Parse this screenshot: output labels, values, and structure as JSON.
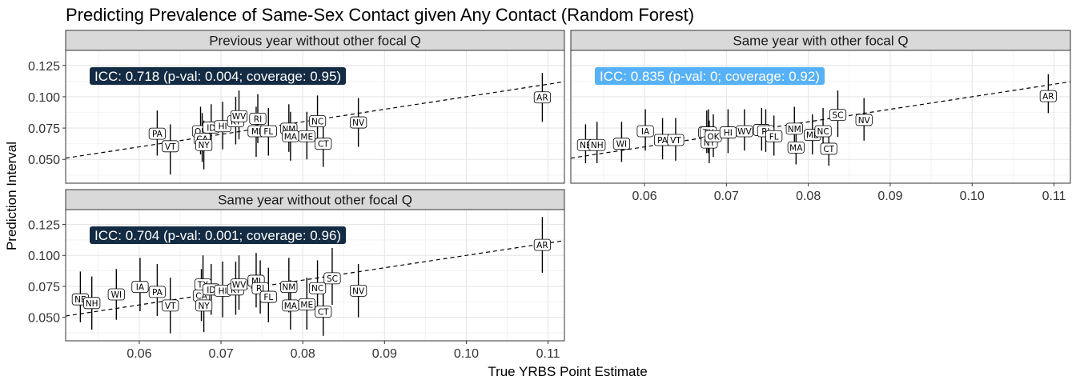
{
  "chart_data": {
    "type": "scatter",
    "title": "Predicting Prevalence of Same-Sex Contact given Any Contact (Random Forest)",
    "xlabel": "True YRBS Point Estimate",
    "ylabel": "Prediction Interval",
    "xlim": [
      0.051,
      0.112
    ],
    "ylim": [
      0.031,
      0.137
    ],
    "xticks": [
      0.06,
      0.07,
      0.08,
      0.09,
      0.1,
      0.11
    ],
    "xtick_labels": [
      "0.06",
      "0.07",
      "0.08",
      "0.09",
      "0.10",
      "0.11"
    ],
    "yticks": [
      0.05,
      0.075,
      0.1,
      0.125
    ],
    "ytick_labels": [
      "0.050",
      "0.075",
      "0.100",
      "0.125"
    ],
    "grid": true,
    "reference_line": {
      "slope": 1,
      "intercept": 0,
      "style": "dashed"
    },
    "panels": [
      {
        "name": "Previous year without other focal Q",
        "icc_label": "ICC: 0.718 (p-val: 0.004; coverage: 0.95)",
        "icc_color": "#132B43",
        "points": [
          {
            "state": "PA",
            "x": 0.0622,
            "y": 0.0705,
            "lo": 0.053,
            "hi": 0.089
          },
          {
            "state": "VT",
            "x": 0.0638,
            "y": 0.0605,
            "lo": 0.038,
            "hi": 0.078
          },
          {
            "state": "OK",
            "x": 0.0675,
            "y": 0.0725,
            "lo": 0.054,
            "hi": 0.092
          },
          {
            "state": "CA",
            "x": 0.0677,
            "y": 0.0665,
            "lo": 0.048,
            "hi": 0.087
          },
          {
            "state": "NY",
            "x": 0.0679,
            "y": 0.0615,
            "lo": 0.042,
            "hi": 0.081
          },
          {
            "state": "ID",
            "x": 0.0688,
            "y": 0.0755,
            "lo": 0.057,
            "hi": 0.094
          },
          {
            "state": "HI",
            "x": 0.0702,
            "y": 0.0765,
            "lo": 0.058,
            "hi": 0.096
          },
          {
            "state": "KY",
            "x": 0.0718,
            "y": 0.0805,
            "lo": 0.062,
            "hi": 0.1
          },
          {
            "state": "WV",
            "x": 0.0722,
            "y": 0.0845,
            "lo": 0.066,
            "hi": 0.105
          },
          {
            "state": "RI",
            "x": 0.0745,
            "y": 0.0825,
            "lo": 0.063,
            "hi": 0.102
          },
          {
            "state": "MI",
            "x": 0.0743,
            "y": 0.0725,
            "lo": 0.052,
            "hi": 0.092
          },
          {
            "state": "FL",
            "x": 0.0758,
            "y": 0.0725,
            "lo": 0.053,
            "hi": 0.091
          },
          {
            "state": "NM",
            "x": 0.0783,
            "y": 0.0745,
            "lo": 0.056,
            "hi": 0.094
          },
          {
            "state": "MA",
            "x": 0.0785,
            "y": 0.0685,
            "lo": 0.049,
            "hi": 0.088
          },
          {
            "state": "ME",
            "x": 0.0805,
            "y": 0.0685,
            "lo": 0.05,
            "hi": 0.088
          },
          {
            "state": "NC",
            "x": 0.0818,
            "y": 0.0805,
            "lo": 0.062,
            "hi": 0.101
          },
          {
            "state": "CT",
            "x": 0.0825,
            "y": 0.0625,
            "lo": 0.044,
            "hi": 0.081
          },
          {
            "state": "NV",
            "x": 0.0868,
            "y": 0.0795,
            "lo": 0.06,
            "hi": 0.099
          },
          {
            "state": "AR",
            "x": 0.1093,
            "y": 0.0995,
            "lo": 0.08,
            "hi": 0.119
          }
        ]
      },
      {
        "name": "Same year with other focal Q",
        "icc_label": "ICC: 0.835 (p-val: 0; coverage: 0.92)",
        "icc_color": "#56B1F7",
        "points": [
          {
            "state": "NE",
            "x": 0.0528,
            "y": 0.0615,
            "lo": 0.047,
            "hi": 0.078
          },
          {
            "state": "NH",
            "x": 0.0542,
            "y": 0.0615,
            "lo": 0.047,
            "hi": 0.08
          },
          {
            "state": "WI",
            "x": 0.0572,
            "y": 0.0625,
            "lo": 0.048,
            "hi": 0.08
          },
          {
            "state": "IA",
            "x": 0.0601,
            "y": 0.0725,
            "lo": 0.057,
            "hi": 0.09
          },
          {
            "state": "PA",
            "x": 0.0622,
            "y": 0.0655,
            "lo": 0.05,
            "hi": 0.083
          },
          {
            "state": "VT",
            "x": 0.0638,
            "y": 0.0655,
            "lo": 0.049,
            "hi": 0.083
          },
          {
            "state": "CA",
            "x": 0.0676,
            "y": 0.0715,
            "lo": 0.055,
            "hi": 0.089
          },
          {
            "state": "TX",
            "x": 0.0678,
            "y": 0.0715,
            "lo": 0.055,
            "hi": 0.09
          },
          {
            "state": "NY",
            "x": 0.0679,
            "y": 0.0635,
            "lo": 0.047,
            "hi": 0.081
          },
          {
            "state": "OK",
            "x": 0.0684,
            "y": 0.0685,
            "lo": 0.052,
            "hi": 0.086
          },
          {
            "state": "HI",
            "x": 0.0702,
            "y": 0.0715,
            "lo": 0.055,
            "hi": 0.09
          },
          {
            "state": "WV",
            "x": 0.0722,
            "y": 0.0725,
            "lo": 0.057,
            "hi": 0.09
          },
          {
            "state": "MI",
            "x": 0.0743,
            "y": 0.0735,
            "lo": 0.057,
            "hi": 0.091
          },
          {
            "state": "RI",
            "x": 0.0748,
            "y": 0.0725,
            "lo": 0.056,
            "hi": 0.09
          },
          {
            "state": "FL",
            "x": 0.0758,
            "y": 0.0685,
            "lo": 0.053,
            "hi": 0.085
          },
          {
            "state": "NM",
            "x": 0.0783,
            "y": 0.0745,
            "lo": 0.058,
            "hi": 0.092
          },
          {
            "state": "MA",
            "x": 0.0785,
            "y": 0.0595,
            "lo": 0.046,
            "hi": 0.075
          },
          {
            "state": "ME",
            "x": 0.0805,
            "y": 0.0695,
            "lo": 0.054,
            "hi": 0.086
          },
          {
            "state": "NC",
            "x": 0.0818,
            "y": 0.0725,
            "lo": 0.056,
            "hi": 0.091
          },
          {
            "state": "CT",
            "x": 0.0825,
            "y": 0.0585,
            "lo": 0.045,
            "hi": 0.074
          },
          {
            "state": "SC",
            "x": 0.0836,
            "y": 0.0855,
            "lo": 0.068,
            "hi": 0.105
          },
          {
            "state": "NV",
            "x": 0.0868,
            "y": 0.0815,
            "lo": 0.065,
            "hi": 0.099
          },
          {
            "state": "AR",
            "x": 0.1093,
            "y": 0.1005,
            "lo": 0.087,
            "hi": 0.118
          }
        ]
      },
      {
        "name": "Same year without other focal Q",
        "icc_label": "ICC: 0.704 (p-val: 0.001; coverage: 0.96)",
        "icc_color": "#132B43",
        "points": [
          {
            "state": "NE",
            "x": 0.0528,
            "y": 0.0645,
            "lo": 0.046,
            "hi": 0.087
          },
          {
            "state": "NH",
            "x": 0.0542,
            "y": 0.0615,
            "lo": 0.04,
            "hi": 0.083
          },
          {
            "state": "WI",
            "x": 0.0572,
            "y": 0.0685,
            "lo": 0.048,
            "hi": 0.089
          },
          {
            "state": "IA",
            "x": 0.0601,
            "y": 0.0745,
            "lo": 0.055,
            "hi": 0.098
          },
          {
            "state": "PA",
            "x": 0.0622,
            "y": 0.0705,
            "lo": 0.051,
            "hi": 0.093
          },
          {
            "state": "VT",
            "x": 0.0638,
            "y": 0.0595,
            "lo": 0.037,
            "hi": 0.082
          },
          {
            "state": "CA",
            "x": 0.0676,
            "y": 0.0675,
            "lo": 0.047,
            "hi": 0.089
          },
          {
            "state": "TX",
            "x": 0.0678,
            "y": 0.0765,
            "lo": 0.056,
            "hi": 0.1
          },
          {
            "state": "NY",
            "x": 0.0679,
            "y": 0.0595,
            "lo": 0.038,
            "hi": 0.081
          },
          {
            "state": "ID",
            "x": 0.0688,
            "y": 0.0725,
            "lo": 0.052,
            "hi": 0.093
          },
          {
            "state": "HI",
            "x": 0.0702,
            "y": 0.0715,
            "lo": 0.05,
            "hi": 0.095
          },
          {
            "state": "KY",
            "x": 0.0718,
            "y": 0.0725,
            "lo": 0.052,
            "hi": 0.095
          },
          {
            "state": "WV",
            "x": 0.0722,
            "y": 0.0765,
            "lo": 0.056,
            "hi": 0.1
          },
          {
            "state": "MI",
            "x": 0.0743,
            "y": 0.0795,
            "lo": 0.058,
            "hi": 0.102
          },
          {
            "state": "RI",
            "x": 0.0748,
            "y": 0.0735,
            "lo": 0.053,
            "hi": 0.096
          },
          {
            "state": "FL",
            "x": 0.0758,
            "y": 0.0665,
            "lo": 0.046,
            "hi": 0.09
          },
          {
            "state": "NM",
            "x": 0.0783,
            "y": 0.0745,
            "lo": 0.054,
            "hi": 0.098
          },
          {
            "state": "MA",
            "x": 0.0785,
            "y": 0.0595,
            "lo": 0.04,
            "hi": 0.08
          },
          {
            "state": "ME",
            "x": 0.0805,
            "y": 0.0605,
            "lo": 0.04,
            "hi": 0.082
          },
          {
            "state": "NC",
            "x": 0.0818,
            "y": 0.0735,
            "lo": 0.052,
            "hi": 0.096
          },
          {
            "state": "CT",
            "x": 0.0825,
            "y": 0.0545,
            "lo": 0.035,
            "hi": 0.075
          },
          {
            "state": "SC",
            "x": 0.0836,
            "y": 0.0815,
            "lo": 0.06,
            "hi": 0.106
          },
          {
            "state": "NV",
            "x": 0.0868,
            "y": 0.0715,
            "lo": 0.05,
            "hi": 0.093
          },
          {
            "state": "AR",
            "x": 0.1093,
            "y": 0.1085,
            "lo": 0.086,
            "hi": 0.131
          }
        ]
      }
    ]
  }
}
